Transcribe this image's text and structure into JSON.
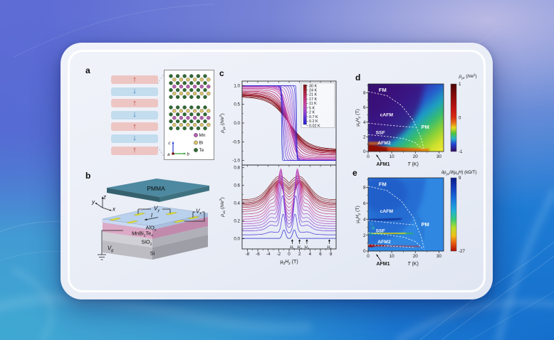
{
  "panels": {
    "a": "a",
    "b": "b",
    "c": "c",
    "d": "d",
    "e": "e"
  },
  "panel_a": {
    "layers": [
      {
        "dir": "up"
      },
      {
        "dir": "down"
      },
      {
        "dir": "up"
      },
      {
        "dir": "down"
      },
      {
        "dir": "up"
      },
      {
        "dir": "down"
      },
      {
        "dir": "up"
      }
    ],
    "crystal": {
      "legend": [
        {
          "label": "Mn",
          "color": "#b65fb1"
        },
        {
          "label": "Bi",
          "color": "#d9c36b"
        },
        {
          "label": "Te",
          "color": "#2f6b33"
        }
      ],
      "layer_pattern": [
        "Te",
        "Bi",
        "Te",
        "Mn",
        "Te",
        "Bi",
        "Te"
      ],
      "axis_c": "c",
      "axis_b": "b",
      "axis_a": "a"
    }
  },
  "panel_b": {
    "labels": {
      "pmma": "PMMA",
      "si": "Si",
      "alox": [
        [
          "AlO"
        ],
        [
          "x",
          "sub"
        ]
      ],
      "mbt": [
        [
          "MnBi"
        ],
        [
          "2",
          "sub"
        ],
        [
          "Te"
        ],
        [
          "4",
          "sub"
        ]
      ],
      "sio2": [
        [
          "SiO"
        ],
        [
          "2",
          "sub"
        ]
      ],
      "vy": [
        [
          "V",
          "i"
        ],
        [
          "y",
          "isub"
        ]
      ],
      "vx": [
        [
          "V",
          "i"
        ],
        [
          "x",
          "isub"
        ]
      ],
      "vg": [
        [
          "V",
          "i"
        ],
        [
          "g",
          "isub"
        ]
      ],
      "current": [
        [
          "I",
          "i"
        ]
      ],
      "ax_x": [
        [
          "x",
          "i"
        ]
      ],
      "ax_y": [
        [
          "y",
          "i"
        ]
      ],
      "ax_z": [
        [
          "z",
          "i"
        ]
      ]
    }
  },
  "chart_data": [
    {
      "id": "c_top",
      "type": "line",
      "ylabel_parts": [
        [
          "ρ",
          "i"
        ],
        [
          "yx",
          "isub"
        ],
        [
          " ("
        ],
        [
          "h",
          "i"
        ],
        [
          "/"
        ],
        [
          "e",
          "i"
        ],
        [
          "2",
          "sup"
        ],
        [
          ")"
        ]
      ],
      "ylim": [
        -1.12,
        1.12
      ],
      "yticks": [
        {
          "v": -1,
          "label": "-1.0"
        },
        {
          "v": -0.5,
          "label": "-0.5"
        },
        {
          "v": 0,
          "label": "0.0"
        },
        {
          "v": 0.5,
          "label": "0.5"
        },
        {
          "v": 1,
          "label": "1.0"
        }
      ],
      "xlim": [
        -9,
        9
      ],
      "description": "Hall resistivity vs out-of-plane field for temperatures 30 K to 0.02 K; smooth antisymmetric sigmoids saturating near 0.7 h/e2 at high T evolve into a square hysteresis loop quantized at plus/minus 1 h/e2 with jumps near plus/minus 1.5 T at lowest T",
      "series": [
        {
          "name": "30 K",
          "t": 0.0,
          "sat": 0.7,
          "hc": 0
        },
        {
          "name": "24 K",
          "t": 0.08,
          "sat": 0.74,
          "hc": 0
        },
        {
          "name": "21 K",
          "t": 0.13,
          "sat": 0.76,
          "hc": 0
        },
        {
          "name": "17 K",
          "t": 0.2,
          "sat": 0.8,
          "hc": 0
        },
        {
          "name": "11 K",
          "t": 0.3,
          "sat": 0.85,
          "hc": 0
        },
        {
          "name": "5 K",
          "t": 0.44,
          "sat": 0.92,
          "hc": 0
        },
        {
          "name": "2 K",
          "t": 0.56,
          "sat": 0.97,
          "hc": 0.3
        },
        {
          "name": "0.7 K",
          "t": 0.68,
          "sat": 1.0,
          "hc": 0.7
        },
        {
          "name": "0.2 K",
          "t": 0.8,
          "sat": 1.0,
          "hc": 1.1
        },
        {
          "name": "0.02 K",
          "t": 1.0,
          "sat": 1.0,
          "hc": 1.45
        }
      ]
    },
    {
      "id": "c_bottom",
      "type": "line",
      "ylabel_parts": [
        [
          "ρ",
          "i"
        ],
        [
          "xx",
          "isub"
        ],
        [
          " ("
        ],
        [
          "h",
          "i"
        ],
        [
          "/"
        ],
        [
          "e",
          "i"
        ],
        [
          "2",
          "sup"
        ],
        [
          ")"
        ]
      ],
      "xlabel_parts": [
        [
          "μ"
        ],
        [
          "0",
          "sub"
        ],
        [
          "H",
          "i"
        ],
        [
          "z",
          "isub"
        ],
        [
          " (T)"
        ]
      ],
      "ylim": [
        -0.115,
        0.83
      ],
      "yticks": [
        {
          "v": 0,
          "label": "0.0"
        },
        {
          "v": 0.2,
          "label": "0.2"
        },
        {
          "v": 0.4,
          "label": "0.4"
        },
        {
          "v": 0.6,
          "label": "0.6"
        },
        {
          "v": 0.8,
          "label": "0.8"
        }
      ],
      "xticks": [
        {
          "v": -8,
          "label": "-8"
        },
        {
          "v": -6,
          "label": "-6"
        },
        {
          "v": -4,
          "label": "-4"
        },
        {
          "v": -2,
          "label": "-2"
        },
        {
          "v": 0,
          "label": "0"
        },
        {
          "v": 2,
          "label": "2"
        },
        {
          "v": 4,
          "label": "4"
        },
        {
          "v": 6,
          "label": "6"
        },
        {
          "v": 8,
          "label": "8"
        }
      ],
      "xlim": [
        -9,
        9
      ],
      "description": "Longitudinal resistivity vs field for the same temperatures; broad double-peaked domes (max about 0.72 h/e2) at high T collapse toward zero at lowest T leaving sharp peaks at the metamagnetic transition fields",
      "transition_fields": [
        {
          "parts": [
            [
              "H",
              "i"
            ],
            [
              "1",
              "sub"
            ]
          ],
          "x": 0.6
        },
        {
          "parts": [
            [
              "H",
              "i"
            ],
            [
              "2",
              "sub"
            ]
          ],
          "x": 2.0
        },
        {
          "parts": [
            [
              "H",
              "i"
            ],
            [
              "3",
              "sub"
            ]
          ],
          "x": 3.4
        },
        {
          "parts": [
            [
              "H",
              "i"
            ],
            [
              "4",
              "sub"
            ]
          ],
          "x": 7.7
        }
      ]
    },
    {
      "id": "d",
      "type": "heatmap",
      "cb_title_parts": [
        [
          "ρ",
          "i"
        ],
        [
          "yx",
          "isub"
        ],
        [
          " ("
        ],
        [
          "h",
          "i"
        ],
        [
          "/"
        ],
        [
          "e",
          "i"
        ],
        [
          "2",
          "sup"
        ],
        [
          ")"
        ]
      ],
      "cb_ticks": [
        {
          "label": "1",
          "frac": 0
        },
        {
          "label": "0",
          "frac": 0.5
        },
        {
          "label": "-1",
          "frac": 1
        }
      ],
      "value_range": [
        -1,
        1
      ],
      "xlabel_parts": [
        [
          "T",
          "i"
        ],
        [
          " (K)"
        ]
      ],
      "ylabel_parts": [
        [
          "μ"
        ],
        [
          "0",
          "sub"
        ],
        [
          "H",
          "i"
        ],
        [
          "z",
          "isub"
        ],
        [
          " (T)"
        ]
      ],
      "xlim": [
        0,
        32
      ],
      "ylim": [
        0,
        9.2
      ],
      "xticks": [
        0,
        10,
        20,
        30
      ],
      "yticks": [
        0,
        2,
        4,
        6,
        8
      ],
      "regions": [
        {
          "label": "FM",
          "T": 4.5,
          "H": 8.35
        },
        {
          "label": "cAFM",
          "T": 5,
          "H": 5.0
        },
        {
          "label": "SSF",
          "T": 3.2,
          "H": 2.55
        },
        {
          "label": "AFM2",
          "T": 4,
          "H": 1.15
        },
        {
          "label": "PM",
          "T": 22.5,
          "H": 3.3
        }
      ],
      "outside_label": "AFM1",
      "boundaries": [
        [
          [
            0,
            8.15
          ],
          [
            8,
            7.6
          ],
          [
            14,
            6.3
          ],
          [
            19,
            4.3
          ],
          [
            22.5,
            1.8
          ],
          [
            23.8,
            0.2
          ]
        ],
        [
          [
            0,
            3.85
          ],
          [
            8,
            3.6
          ],
          [
            15,
            3.4
          ],
          [
            20,
            3.3
          ]
        ],
        [
          [
            0,
            2.3
          ],
          [
            8,
            2.05
          ],
          [
            15,
            1.75
          ],
          [
            20,
            1.2
          ],
          [
            23,
            0.35
          ]
        ]
      ]
    },
    {
      "id": "e",
      "type": "heatmap",
      "cb_title_parts": [
        [
          "∂"
        ],
        [
          "ρ",
          "i"
        ],
        [
          "yx",
          "isub"
        ],
        [
          "/∂("
        ],
        [
          "μ"
        ],
        [
          "0",
          "sub"
        ],
        [
          "H",
          "i"
        ],
        [
          ") (kΩ/T)"
        ]
      ],
      "cb_ticks": [
        {
          "label": "9",
          "frac": 0
        },
        {
          "label": "-27",
          "frac": 1
        }
      ],
      "value_range": [
        -27,
        9
      ],
      "xlabel_parts": [
        [
          "T",
          "i"
        ],
        [
          " (K)"
        ]
      ],
      "ylabel_parts": [
        [
          "μ"
        ],
        [
          "0",
          "sub"
        ],
        [
          "H",
          "i"
        ],
        [
          "z",
          "isub"
        ],
        [
          " (T)"
        ]
      ],
      "xlim": [
        0,
        32
      ],
      "ylim": [
        0,
        9.2
      ],
      "xticks": [
        0,
        10,
        20,
        30
      ],
      "yticks": [
        0,
        2,
        4,
        6,
        8
      ],
      "regions": [
        {
          "label": "FM",
          "T": 4.5,
          "H": 8.35
        },
        {
          "label": "cAFM",
          "T": 5,
          "H": 5.0
        },
        {
          "label": "SSF",
          "T": 3.2,
          "H": 2.55
        },
        {
          "label": "AFM2",
          "T": 4,
          "H": 1.15
        },
        {
          "label": "PM",
          "T": 22.5,
          "H": 3.3
        }
      ],
      "outside_label": "AFM1",
      "boundaries": [
        [
          [
            0,
            8.15
          ],
          [
            8,
            7.6
          ],
          [
            14,
            6.3
          ],
          [
            19,
            4.3
          ],
          [
            22.5,
            1.8
          ],
          [
            23.8,
            0.2
          ]
        ],
        [
          [
            0,
            3.85
          ],
          [
            8,
            3.6
          ],
          [
            15,
            3.4
          ],
          [
            20,
            3.3
          ]
        ],
        [
          [
            0,
            2.3
          ],
          [
            8,
            2.05
          ],
          [
            15,
            1.75
          ],
          [
            20,
            1.2
          ],
          [
            23,
            0.35
          ]
        ],
        [
          [
            0,
            0.8
          ],
          [
            10,
            0.62
          ],
          [
            20,
            0.45
          ]
        ]
      ]
    }
  ]
}
